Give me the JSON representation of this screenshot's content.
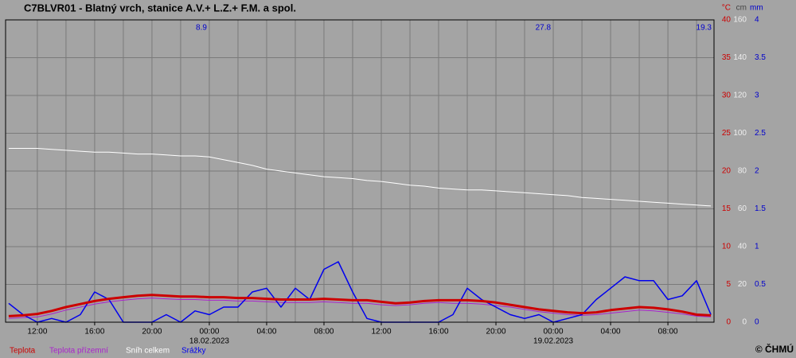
{
  "chart_data": {
    "type": "line",
    "title": "C7BLVR01 - Blatný vrch, stanice A.V.+ L.Z.+ F.M. a spol.",
    "copyright": "© ČHMÚ",
    "axis_units": {
      "y": "°C",
      "y2": "cm",
      "y3": "mm"
    },
    "x": [
      "17.02.2023 10:00",
      "17.02.2023 11:00",
      "17.02.2023 12:00",
      "17.02.2023 13:00",
      "17.02.2023 14:00",
      "17.02.2023 15:00",
      "17.02.2023 16:00",
      "17.02.2023 17:00",
      "17.02.2023 18:00",
      "17.02.2023 19:00",
      "17.02.2023 20:00",
      "17.02.2023 21:00",
      "17.02.2023 22:00",
      "17.02.2023 23:00",
      "18.02.2023 00:00",
      "18.02.2023 01:00",
      "18.02.2023 02:00",
      "18.02.2023 03:00",
      "18.02.2023 04:00",
      "18.02.2023 05:00",
      "18.02.2023 06:00",
      "18.02.2023 07:00",
      "18.02.2023 08:00",
      "18.02.2023 09:00",
      "18.02.2023 10:00",
      "18.02.2023 11:00",
      "18.02.2023 12:00",
      "18.02.2023 13:00",
      "18.02.2023 14:00",
      "18.02.2023 15:00",
      "18.02.2023 16:00",
      "18.02.2023 17:00",
      "18.02.2023 18:00",
      "18.02.2023 19:00",
      "18.02.2023 20:00",
      "18.02.2023 21:00",
      "18.02.2023 22:00",
      "18.02.2023 23:00",
      "19.02.2023 00:00",
      "19.02.2023 01:00",
      "19.02.2023 02:00",
      "19.02.2023 03:00",
      "19.02.2023 04:00",
      "19.02.2023 05:00",
      "19.02.2023 06:00",
      "19.02.2023 07:00",
      "19.02.2023 08:00",
      "19.02.2023 09:00",
      "19.02.2023 10:00",
      "19.02.2023 11:00"
    ],
    "xlim": [
      "17.02.2023 09:47",
      "19.02.2023 11:13"
    ],
    "xticks": [
      {
        "value": "17.02.2023 12:00",
        "label": "12:00"
      },
      {
        "value": "17.02.2023 16:00",
        "label": "16:00"
      },
      {
        "value": "17.02.2023 20:00",
        "label": "20:00"
      },
      {
        "value": "18.02.2023 00:00",
        "label": "00:00"
      },
      {
        "value": "18.02.2023 04:00",
        "label": "04:00"
      },
      {
        "value": "18.02.2023 08:00",
        "label": "08:00"
      },
      {
        "value": "18.02.2023 12:00",
        "label": "12:00"
      },
      {
        "value": "18.02.2023 16:00",
        "label": "16:00"
      },
      {
        "value": "18.02.2023 20:00",
        "label": "20:00"
      },
      {
        "value": "19.02.2023 00:00",
        "label": "00:00"
      },
      {
        "value": "19.02.2023 04:00",
        "label": "04:00"
      },
      {
        "value": "19.02.2023 08:00",
        "label": "08:00"
      }
    ],
    "x_grid": [
      "17.02.2023 12:00",
      "17.02.2023 14:00",
      "17.02.2023 16:00",
      "17.02.2023 18:00",
      "17.02.2023 20:00",
      "17.02.2023 22:00",
      "18.02.2023 00:00",
      "18.02.2023 02:00",
      "18.02.2023 04:00",
      "18.02.2023 06:00",
      "18.02.2023 08:00",
      "18.02.2023 10:00",
      "18.02.2023 12:00",
      "18.02.2023 14:00",
      "18.02.2023 16:00",
      "18.02.2023 18:00",
      "18.02.2023 20:00",
      "18.02.2023 22:00",
      "19.02.2023 00:00",
      "19.02.2023 02:00",
      "19.02.2023 04:00",
      "19.02.2023 06:00",
      "19.02.2023 08:00",
      "19.02.2023 10:00"
    ],
    "date_labels": [
      {
        "value": "18.02.2023 00:00",
        "label": "18.02.2023"
      },
      {
        "value": "19.02.2023 00:00",
        "label": "19.02.2023"
      }
    ],
    "annotations": [
      {
        "x": "18.02.2023 00:00",
        "text": "8.9"
      },
      {
        "x": "19.02.2023 00:00",
        "text": "27.8"
      },
      {
        "x": "19.02.2023 11:13",
        "text": "19.3"
      }
    ],
    "ylim": [
      0,
      40
    ],
    "yticks": [
      0,
      5,
      10,
      15,
      20,
      25,
      30,
      35,
      40
    ],
    "y2lim": [
      0,
      160
    ],
    "y2ticks": [
      0,
      20,
      40,
      60,
      80,
      100,
      120,
      140,
      160
    ],
    "y3lim": [
      0,
      4
    ],
    "y3ticks": [
      0,
      0.5,
      1,
      1.5,
      2,
      2.5,
      3,
      3.5,
      4
    ],
    "grid": true,
    "series": [
      {
        "name": "Teplota",
        "color": "#cc0000",
        "axis": "y",
        "values": [
          0.8,
          0.9,
          1.1,
          1.5,
          2.0,
          2.4,
          2.8,
          3.1,
          3.3,
          3.5,
          3.6,
          3.5,
          3.4,
          3.4,
          3.3,
          3.3,
          3.2,
          3.2,
          3.1,
          3.0,
          3.0,
          3.0,
          3.1,
          3.0,
          2.9,
          2.9,
          2.7,
          2.5,
          2.6,
          2.8,
          2.9,
          2.9,
          2.9,
          2.8,
          2.6,
          2.3,
          2.0,
          1.7,
          1.5,
          1.3,
          1.2,
          1.3,
          1.6,
          1.8,
          2.0,
          1.9,
          1.7,
          1.4,
          1.0,
          0.9
        ]
      },
      {
        "name": "Teplota přízemní",
        "color": "#aa22cc",
        "axis": "y",
        "values": [
          0.5,
          0.6,
          0.7,
          1.1,
          1.6,
          2.0,
          2.4,
          2.7,
          2.9,
          3.1,
          3.2,
          3.1,
          3.0,
          3.0,
          2.9,
          2.9,
          2.8,
          2.8,
          2.7,
          2.6,
          2.6,
          2.6,
          2.7,
          2.6,
          2.5,
          2.5,
          2.3,
          2.2,
          2.3,
          2.5,
          2.6,
          2.5,
          2.5,
          2.4,
          2.2,
          2.0,
          1.7,
          1.4,
          1.2,
          1.0,
          0.9,
          1.0,
          1.2,
          1.4,
          1.6,
          1.5,
          1.3,
          1.1,
          0.8,
          0.7
        ]
      },
      {
        "name": "Sníh celkem",
        "color": "#ffffff",
        "axis": "y2",
        "values": [
          92,
          92,
          92,
          91.5,
          91,
          90.5,
          90,
          90,
          89.5,
          89,
          89,
          88.5,
          88,
          88,
          87.5,
          86,
          84.5,
          83,
          81,
          80,
          79,
          78,
          77,
          76.5,
          76,
          75,
          74.5,
          73.5,
          72.5,
          72,
          71,
          70.5,
          70,
          70,
          69.5,
          69,
          68.5,
          68,
          67.5,
          67,
          66,
          65.5,
          65,
          64.5,
          64,
          63.5,
          63,
          62.5,
          62,
          61.5
        ]
      },
      {
        "name": "Srážky",
        "color": "#0000ee",
        "axis": "y3",
        "values": [
          0.25,
          0.1,
          0,
          0.05,
          0,
          0.1,
          0.4,
          0.3,
          0,
          0,
          0,
          0.1,
          0,
          0.15,
          0.1,
          0.2,
          0.2,
          0.4,
          0.45,
          0.2,
          0.45,
          0.3,
          0.7,
          0.8,
          0.4,
          0.05,
          0,
          0,
          0,
          0,
          0,
          0.1,
          0.45,
          0.3,
          0.2,
          0.1,
          0.05,
          0.1,
          0,
          0.05,
          0.1,
          0.3,
          0.45,
          0.6,
          0.55,
          0.55,
          0.3,
          0.35,
          0.55,
          0.1
        ]
      }
    ]
  }
}
